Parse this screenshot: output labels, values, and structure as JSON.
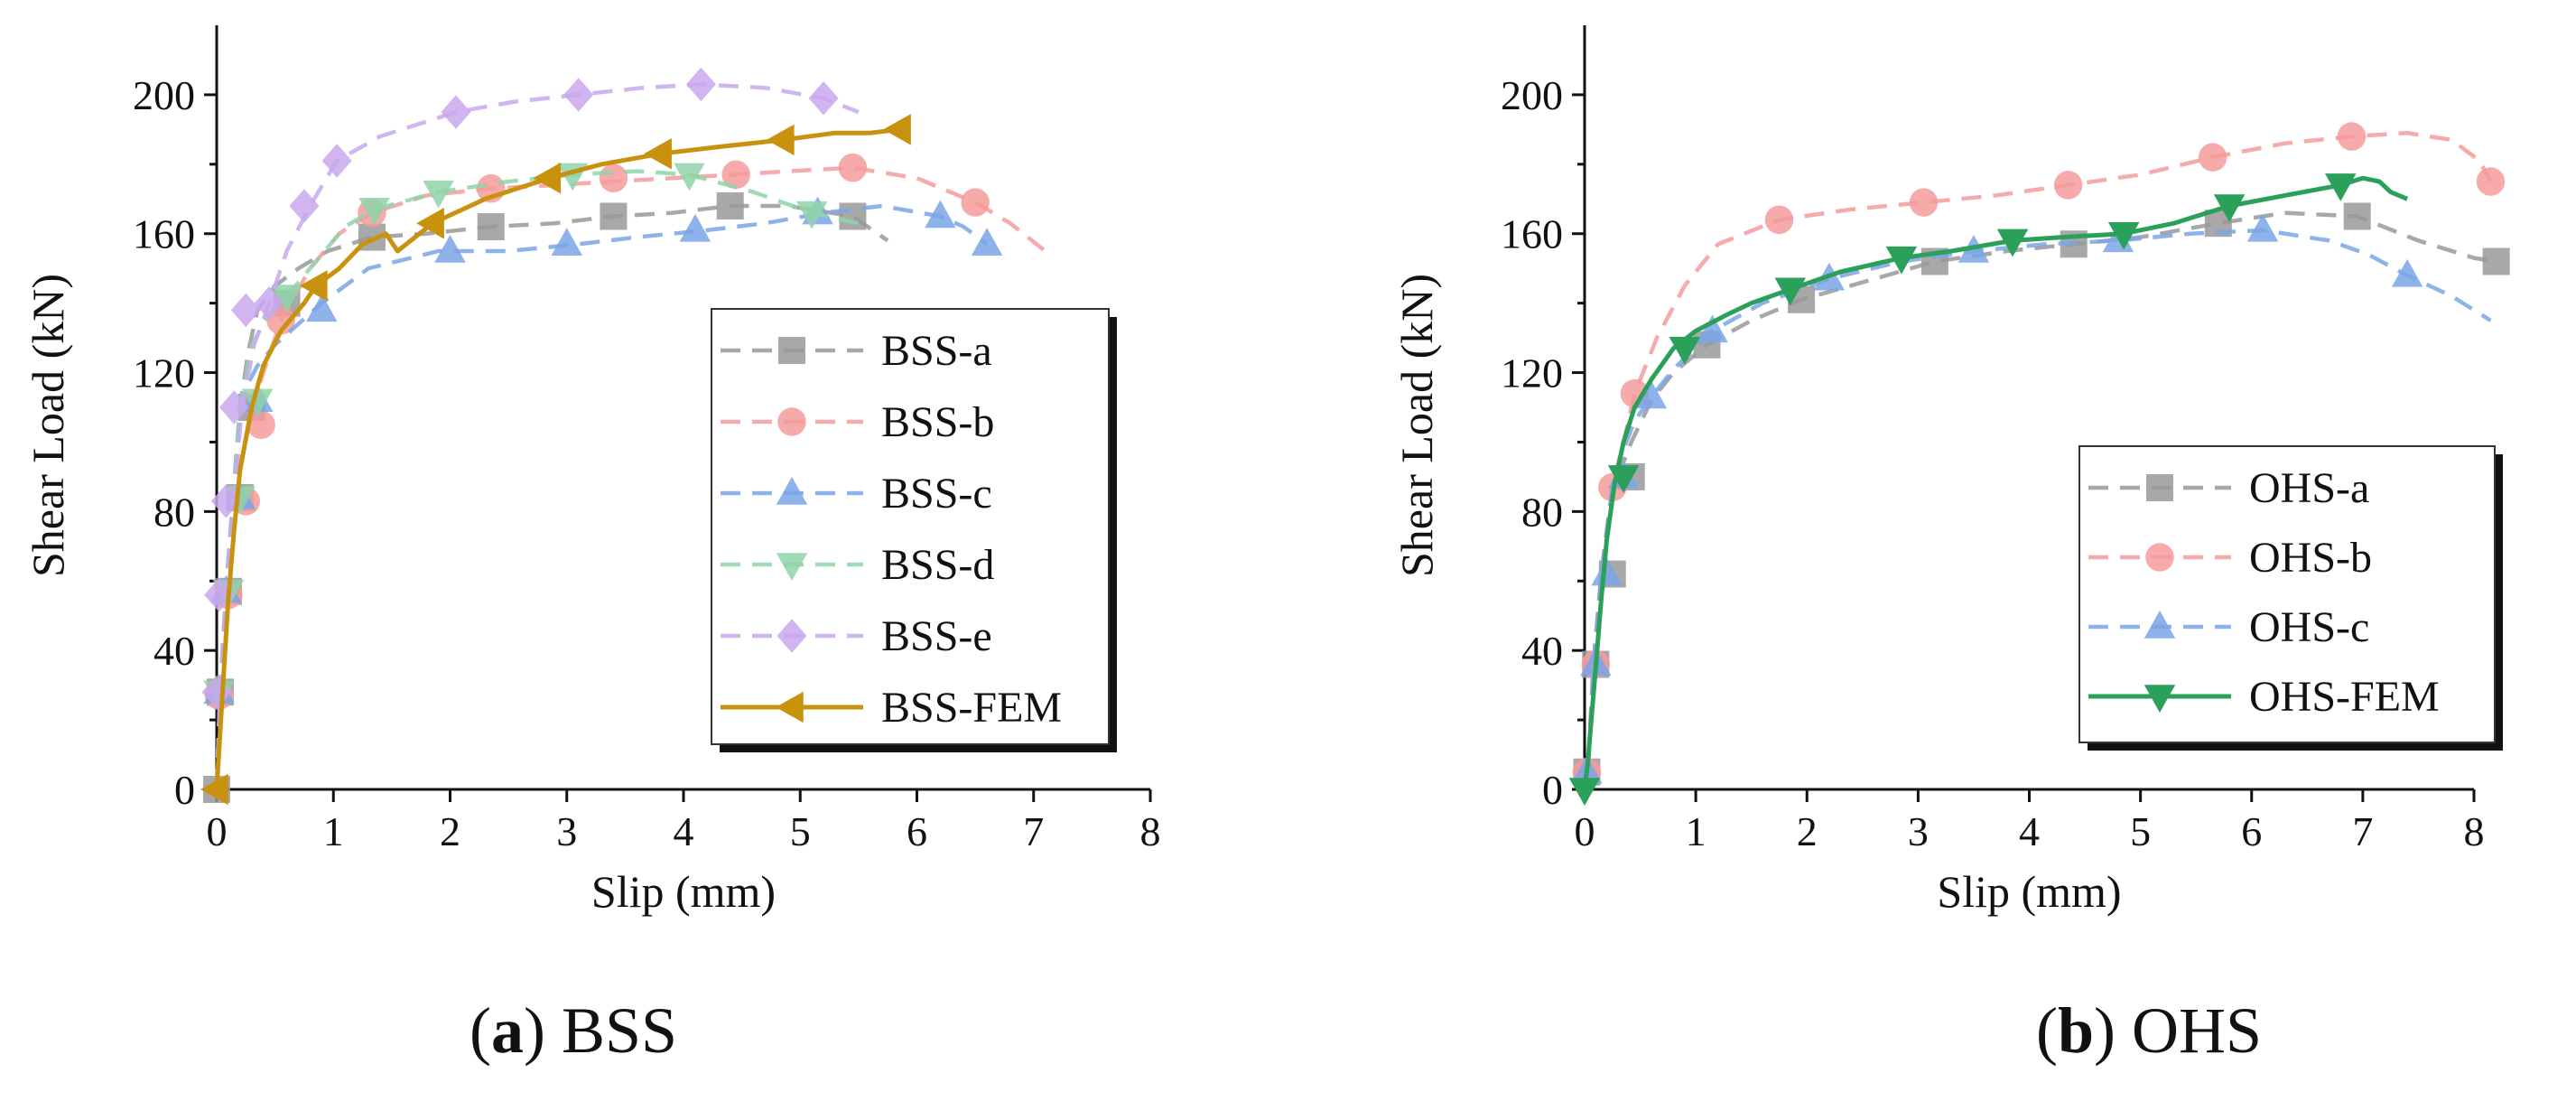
{
  "chart_data": [
    {
      "type": "line",
      "panel": "a",
      "caption": {
        "letter": "a",
        "name": "BSS"
      },
      "xlabel": "Slip (mm)",
      "ylabel": "Shear Load (kN)",
      "xlim": [
        0,
        8
      ],
      "ylim": [
        0,
        220
      ],
      "xticks": [
        0,
        1,
        2,
        3,
        4,
        5,
        6,
        7,
        8
      ],
      "yticks": [
        0,
        40,
        80,
        120,
        160,
        200
      ],
      "legend_position": "right",
      "series": [
        {
          "name": "BSS-a",
          "color": "#999999",
          "marker": "square",
          "style": "dashed",
          "x": [
            0,
            0.03,
            0.08,
            0.14,
            0.2,
            0.27,
            0.35,
            0.5,
            0.7,
            0.95,
            1.33,
            1.8,
            2.35,
            2.9,
            3.4,
            3.9,
            4.4,
            4.9,
            5.45,
            5.75
          ],
          "y": [
            0,
            28,
            57,
            84,
            110,
            126,
            138,
            145,
            150,
            155,
            159,
            160,
            162,
            163,
            165,
            166,
            168,
            168,
            165,
            158
          ],
          "marker_x": [
            0,
            0.03,
            0.1,
            0.2,
            0.3,
            0.6,
            1.33,
            2.35,
            3.4,
            4.4,
            5.45
          ],
          "marker_y": [
            0,
            28,
            57,
            84,
            110,
            140,
            159,
            162,
            165,
            168,
            165
          ]
        },
        {
          "name": "BSS-b",
          "color": "#f49b9b",
          "marker": "circle",
          "style": "dashed",
          "x": [
            0,
            0.03,
            0.08,
            0.14,
            0.2,
            0.28,
            0.38,
            0.55,
            0.8,
            1.05,
            1.33,
            1.8,
            2.35,
            2.9,
            3.4,
            3.9,
            4.45,
            4.9,
            5.45,
            6.0,
            6.5,
            6.8,
            7.1
          ],
          "y": [
            0,
            28,
            57,
            83,
            95,
            105,
            118,
            135,
            150,
            160,
            166,
            171,
            173,
            174,
            175,
            176,
            177,
            178,
            179,
            176,
            169,
            163,
            155
          ],
          "marker_x": [
            0.02,
            0.1,
            0.25,
            0.38,
            0.55,
            1.33,
            2.35,
            3.4,
            4.45,
            5.45,
            6.5
          ],
          "marker_y": [
            27,
            56,
            83,
            105,
            135,
            166,
            173,
            176,
            177,
            179,
            169
          ]
        },
        {
          "name": "BSS-c",
          "color": "#7aa5e6",
          "marker": "triangle-up",
          "style": "dashed",
          "x": [
            0,
            0.03,
            0.08,
            0.14,
            0.2,
            0.27,
            0.35,
            0.5,
            0.7,
            0.9,
            1.3,
            1.9,
            2.5,
            3.1,
            3.6,
            4.2,
            4.7,
            5.2,
            5.7,
            6.2,
            6.4,
            6.6
          ],
          "y": [
            0,
            28,
            57,
            84,
            110,
            117,
            122,
            128,
            134,
            140,
            150,
            155,
            155,
            157,
            159,
            161,
            163,
            166,
            168,
            165,
            162,
            157
          ],
          "marker_x": [
            0.02,
            0.08,
            0.2,
            0.35,
            0.9,
            2.0,
            3.0,
            4.1,
            5.15,
            6.2,
            6.6
          ],
          "marker_y": [
            28,
            57,
            84,
            112,
            138,
            155,
            157,
            161,
            166,
            165,
            157
          ]
        },
        {
          "name": "BSS-d",
          "color": "#8fd4a9",
          "marker": "triangle-down",
          "style": "dashed",
          "x": [
            0,
            0.03,
            0.08,
            0.14,
            0.2,
            0.3,
            0.45,
            0.6,
            0.85,
            1.1,
            1.35,
            1.9,
            2.5,
            3.05,
            3.6,
            4.05,
            4.6,
            5.1,
            5.5
          ],
          "y": [
            0,
            28,
            57,
            84,
            110,
            128,
            137,
            142,
            152,
            162,
            167,
            172,
            175,
            177,
            178,
            177,
            172,
            166,
            163
          ],
          "marker_x": [
            0.02,
            0.1,
            0.2,
            0.35,
            0.6,
            1.35,
            1.9,
            3.05,
            4.05,
            5.1
          ],
          "marker_y": [
            28,
            57,
            84,
            112,
            142,
            167,
            172,
            177,
            177,
            166
          ]
        },
        {
          "name": "BSS-e",
          "color": "#c8a8ee",
          "marker": "diamond",
          "style": "dashed",
          "x": [
            0,
            0.03,
            0.08,
            0.14,
            0.22,
            0.32,
            0.45,
            0.6,
            0.8,
            1.03,
            1.4,
            2.05,
            2.55,
            3.1,
            3.65,
            4.15,
            4.7,
            5.2,
            5.5
          ],
          "y": [
            0,
            28,
            57,
            84,
            110,
            128,
            140,
            155,
            168,
            181,
            188,
            195,
            198,
            200,
            202,
            203,
            202,
            199,
            195
          ],
          "marker_x": [
            0,
            0.02,
            0.08,
            0.15,
            0.25,
            0.45,
            0.75,
            1.03,
            2.05,
            3.1,
            4.15,
            5.2
          ],
          "marker_y": [
            28,
            56,
            83,
            110,
            138,
            140,
            168,
            181,
            195,
            200,
            203,
            199
          ]
        },
        {
          "name": "BSS-FEM",
          "color": "#c9920e",
          "marker": "triangle-left",
          "style": "solid",
          "x": [
            0,
            0.05,
            0.1,
            0.15,
            0.2,
            0.3,
            0.4,
            0.55,
            0.75,
            0.85,
            1.05,
            1.25,
            1.45,
            1.55,
            1.85,
            2.3,
            2.85,
            3.3,
            3.8,
            4.3,
            4.85,
            5.3,
            5.6,
            5.85
          ],
          "y": [
            0,
            28,
            55,
            75,
            92,
            110,
            122,
            132,
            140,
            145,
            150,
            157,
            160,
            155,
            163,
            170,
            176,
            180,
            183,
            185,
            187,
            189,
            189,
            190
          ],
          "marker_x": [
            0,
            0.85,
            1.85,
            2.85,
            3.8,
            4.85,
            5.85
          ],
          "marker_y": [
            0,
            145,
            163,
            176,
            183,
            187,
            190
          ]
        }
      ]
    },
    {
      "type": "line",
      "panel": "b",
      "caption": {
        "letter": "b",
        "name": "OHS"
      },
      "xlabel": "Slip (mm)",
      "ylabel": "Shear Load (kN)",
      "xlim": [
        0,
        8
      ],
      "ylim": [
        0,
        220
      ],
      "xticks": [
        0,
        1,
        2,
        3,
        4,
        5,
        6,
        7,
        8
      ],
      "yticks": [
        0,
        40,
        80,
        120,
        160,
        200
      ],
      "legend_position": "right",
      "series": [
        {
          "name": "OHS-a",
          "color": "#999999",
          "marker": "square",
          "style": "dashed",
          "x": [
            0,
            0.03,
            0.08,
            0.15,
            0.22,
            0.3,
            0.42,
            0.6,
            0.8,
            1.1,
            1.5,
            1.95,
            2.5,
            3.15,
            3.8,
            4.4,
            5.0,
            5.7,
            6.3,
            6.95,
            7.5,
            8.0,
            8.2
          ],
          "y": [
            0,
            5,
            36,
            62,
            80,
            90,
            100,
            112,
            120,
            128,
            135,
            141,
            146,
            152,
            155,
            157,
            159,
            163,
            166,
            165,
            158,
            153,
            152
          ],
          "marker_x": [
            0.02,
            0.1,
            0.25,
            0.42,
            1.1,
            1.95,
            3.15,
            4.4,
            5.7,
            6.95,
            8.2
          ],
          "marker_y": [
            5,
            36,
            62,
            90,
            128,
            141,
            152,
            157,
            163,
            165,
            152
          ]
        },
        {
          "name": "OHS-b",
          "color": "#f49b9b",
          "marker": "circle",
          "style": "dashed",
          "x": [
            0,
            0.03,
            0.08,
            0.15,
            0.25,
            0.35,
            0.45,
            0.65,
            0.9,
            1.2,
            1.75,
            2.4,
            3.05,
            3.7,
            4.35,
            5.0,
            5.65,
            6.3,
            6.9,
            7.4,
            7.8,
            8.05,
            8.15
          ],
          "y": [
            0,
            5,
            36,
            62,
            87,
            100,
            114,
            130,
            145,
            157,
            164,
            167,
            169,
            171,
            174,
            177,
            182,
            186,
            188,
            189,
            187,
            181,
            175
          ],
          "marker_x": [
            0.02,
            0.1,
            0.25,
            0.45,
            1.75,
            3.05,
            4.35,
            5.65,
            6.9,
            8.15
          ],
          "marker_y": [
            5,
            36,
            87,
            114,
            164,
            169,
            174,
            182,
            188,
            175
          ]
        },
        {
          "name": "OHS-c",
          "color": "#7aa5e6",
          "marker": "triangle-up",
          "style": "dashed",
          "x": [
            0,
            0.03,
            0.08,
            0.15,
            0.25,
            0.35,
            0.45,
            0.6,
            0.8,
            1.15,
            1.6,
            2.2,
            2.85,
            3.5,
            4.15,
            4.8,
            5.45,
            6.1,
            6.7,
            7.05,
            7.4,
            7.8,
            8.15
          ],
          "y": [
            0,
            5,
            36,
            62,
            87,
            98,
            106,
            113,
            121,
            132,
            140,
            147,
            152,
            155,
            157,
            158,
            160,
            161,
            158,
            154,
            148,
            142,
            135
          ],
          "marker_x": [
            0.02,
            0.1,
            0.2,
            0.35,
            0.6,
            1.15,
            2.2,
            3.5,
            4.8,
            6.1,
            7.4
          ],
          "marker_y": [
            5,
            36,
            62,
            90,
            113,
            132,
            147,
            155,
            158,
            161,
            148
          ]
        },
        {
          "name": "OHS-FEM",
          "color": "#2aa05a",
          "marker": "triangle-down",
          "style": "solid",
          "x": [
            0,
            0.03,
            0.06,
            0.1,
            0.15,
            0.2,
            0.27,
            0.35,
            0.45,
            0.6,
            0.8,
            1.0,
            1.3,
            1.5,
            1.85,
            2.3,
            2.85,
            3.3,
            3.85,
            4.3,
            4.85,
            5.3,
            5.8,
            6.3,
            6.8,
            7.0,
            7.15,
            7.25,
            7.4
          ],
          "y": [
            0,
            8,
            20,
            35,
            55,
            72,
            88,
            100,
            110,
            118,
            127,
            132,
            137,
            140,
            144,
            149,
            153,
            155,
            158,
            159,
            160,
            163,
            168,
            171,
            174,
            176,
            175,
            172,
            170
          ],
          "marker_x": [
            0,
            0.35,
            0.9,
            1.85,
            2.85,
            3.85,
            4.85,
            5.8,
            6.8
          ],
          "marker_y": [
            0,
            90,
            127,
            144,
            153,
            158,
            160,
            168,
            174
          ]
        }
      ]
    }
  ]
}
